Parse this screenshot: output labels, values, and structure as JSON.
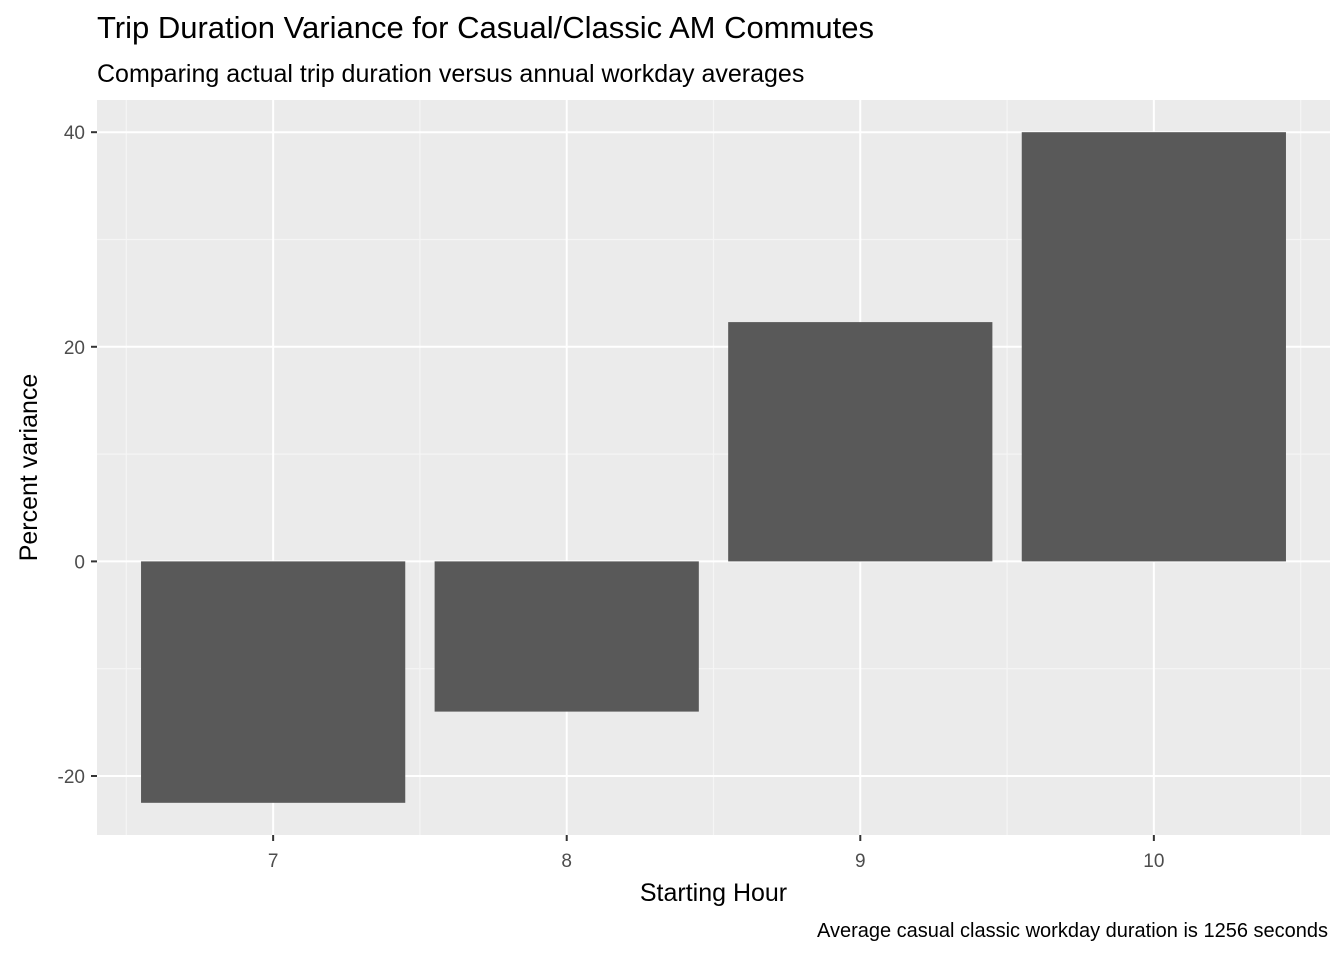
{
  "chart_data": {
    "type": "bar",
    "title": "Trip Duration Variance for Casual/Classic AM Commutes",
    "subtitle": "Comparing actual trip duration versus annual workday averages",
    "xlabel": "Starting Hour",
    "ylabel": "Percent variance",
    "caption": "Average casual classic workday duration is 1256 seconds",
    "categories": [
      "7",
      "8",
      "9",
      "10"
    ],
    "values": [
      -22.5,
      -14.0,
      22.3,
      40.0
    ],
    "ylim": [
      -25.5,
      43.0
    ],
    "yticks": [
      -20,
      0,
      20,
      40
    ],
    "grid": true,
    "legend": "none",
    "colors": {
      "bar": "#595959",
      "panel": "#ebebeb",
      "grid_major": "#ffffff",
      "grid_minor": "#f5f5f5",
      "tick_text": "#4d4d4d"
    }
  }
}
